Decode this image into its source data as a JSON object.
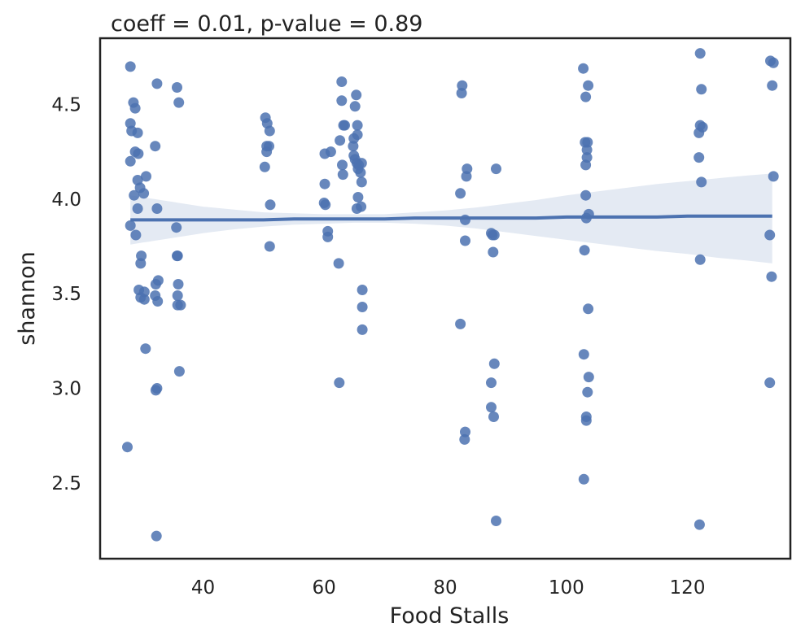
{
  "chart_data": {
    "type": "scatter",
    "title": "coeff = 0.01, p-value = 0.89",
    "xlabel": "Food Stalls",
    "ylabel": "shannon",
    "xlim": [
      23,
      137
    ],
    "ylim": [
      2.1,
      4.85
    ],
    "xticks": [
      40,
      60,
      80,
      100,
      120
    ],
    "yticks": [
      2.5,
      3.0,
      3.5,
      4.0,
      4.5
    ],
    "xtick_labels": [
      "40",
      "60",
      "80",
      "100",
      "120"
    ],
    "ytick_labels": [
      "2.5",
      "3.0",
      "3.5",
      "4.0",
      "4.5"
    ],
    "grid": false,
    "colors": {
      "points": "#4c72b0",
      "line": "#4c72b0",
      "band": "#4c72b0"
    },
    "regression": {
      "x": [
        28,
        29,
        30,
        31,
        32,
        33,
        34,
        35,
        36,
        37,
        40,
        45,
        50,
        55,
        60,
        65,
        70,
        75,
        80,
        85,
        90,
        95,
        100,
        105,
        110,
        115,
        120,
        125,
        130,
        134
      ],
      "y": [
        3.89,
        3.89,
        3.89,
        3.89,
        3.89,
        3.89,
        3.89,
        3.89,
        3.89,
        3.89,
        3.89,
        3.89,
        3.89,
        3.895,
        3.895,
        3.895,
        3.895,
        3.9,
        3.9,
        3.9,
        3.9,
        3.9,
        3.905,
        3.905,
        3.905,
        3.905,
        3.91,
        3.91,
        3.91,
        3.91
      ],
      "ci_low": [
        3.76,
        3.765,
        3.77,
        3.775,
        3.78,
        3.785,
        3.79,
        3.795,
        3.8,
        3.805,
        3.82,
        3.84,
        3.855,
        3.865,
        3.87,
        3.875,
        3.875,
        3.87,
        3.86,
        3.845,
        3.825,
        3.805,
        3.785,
        3.765,
        3.745,
        3.725,
        3.71,
        3.69,
        3.675,
        3.66
      ],
      "ci_high": [
        4.02,
        4.015,
        4.01,
        4.005,
        4.0,
        3.995,
        3.99,
        3.985,
        3.98,
        3.975,
        3.96,
        3.945,
        3.93,
        3.925,
        3.92,
        3.92,
        3.92,
        3.93,
        3.94,
        3.955,
        3.975,
        3.995,
        4.02,
        4.04,
        4.06,
        4.08,
        4.095,
        4.11,
        4.125,
        4.135
      ]
    },
    "points": [
      [
        28.0,
        4.7
      ],
      [
        28.5,
        4.51
      ],
      [
        28.8,
        4.48
      ],
      [
        28.0,
        4.4
      ],
      [
        28.2,
        4.36
      ],
      [
        29.2,
        4.35
      ],
      [
        28.8,
        4.25
      ],
      [
        29.3,
        4.24
      ],
      [
        28.0,
        4.2
      ],
      [
        30.6,
        4.12
      ],
      [
        29.2,
        4.1
      ],
      [
        29.6,
        4.06
      ],
      [
        30.2,
        4.03
      ],
      [
        28.6,
        4.02
      ],
      [
        29.2,
        3.95
      ],
      [
        28.0,
        3.86
      ],
      [
        28.9,
        3.81
      ],
      [
        29.8,
        3.7
      ],
      [
        29.7,
        3.66
      ],
      [
        29.4,
        3.52
      ],
      [
        30.3,
        3.51
      ],
      [
        29.7,
        3.48
      ],
      [
        30.3,
        3.47
      ],
      [
        30.5,
        3.21
      ],
      [
        27.5,
        2.69
      ],
      [
        32.4,
        4.61
      ],
      [
        32.1,
        4.28
      ],
      [
        32.4,
        3.95
      ],
      [
        32.6,
        3.57
      ],
      [
        32.2,
        3.55
      ],
      [
        32.1,
        3.49
      ],
      [
        32.5,
        3.46
      ],
      [
        32.4,
        3.0
      ],
      [
        32.2,
        2.99
      ],
      [
        32.3,
        2.22
      ],
      [
        35.7,
        4.59
      ],
      [
        36.0,
        4.51
      ],
      [
        35.6,
        3.85
      ],
      [
        35.7,
        3.7
      ],
      [
        35.8,
        3.7
      ],
      [
        35.9,
        3.55
      ],
      [
        35.8,
        3.49
      ],
      [
        35.8,
        3.44
      ],
      [
        36.3,
        3.44
      ],
      [
        36.1,
        3.09
      ],
      [
        50.3,
        4.43
      ],
      [
        50.6,
        4.4
      ],
      [
        51.0,
        4.36
      ],
      [
        50.5,
        4.28
      ],
      [
        50.9,
        4.28
      ],
      [
        50.5,
        4.25
      ],
      [
        50.2,
        4.17
      ],
      [
        51.1,
        3.97
      ],
      [
        51.0,
        3.75
      ],
      [
        62.9,
        4.62
      ],
      [
        62.9,
        4.52
      ],
      [
        63.4,
        4.39
      ],
      [
        63.2,
        4.39
      ],
      [
        62.6,
        4.31
      ],
      [
        61.1,
        4.25
      ],
      [
        60.1,
        4.24
      ],
      [
        63.0,
        4.18
      ],
      [
        63.1,
        4.13
      ],
      [
        60.1,
        4.08
      ],
      [
        60.0,
        3.98
      ],
      [
        60.2,
        3.97
      ],
      [
        60.6,
        3.83
      ],
      [
        60.6,
        3.8
      ],
      [
        62.4,
        3.66
      ],
      [
        62.5,
        3.03
      ],
      [
        65.3,
        4.55
      ],
      [
        65.1,
        4.49
      ],
      [
        65.5,
        4.39
      ],
      [
        65.5,
        4.34
      ],
      [
        64.9,
        4.32
      ],
      [
        64.8,
        4.28
      ],
      [
        64.9,
        4.23
      ],
      [
        65.1,
        4.21
      ],
      [
        65.4,
        4.19
      ],
      [
        65.7,
        4.18
      ],
      [
        66.2,
        4.19
      ],
      [
        65.6,
        4.16
      ],
      [
        66.0,
        4.14
      ],
      [
        66.2,
        4.09
      ],
      [
        65.6,
        4.01
      ],
      [
        66.1,
        3.96
      ],
      [
        65.4,
        3.95
      ],
      [
        66.3,
        3.52
      ],
      [
        66.3,
        3.43
      ],
      [
        66.3,
        3.31
      ],
      [
        82.8,
        4.6
      ],
      [
        82.7,
        4.56
      ],
      [
        83.6,
        4.16
      ],
      [
        83.5,
        4.12
      ],
      [
        82.5,
        4.03
      ],
      [
        83.3,
        3.89
      ],
      [
        83.3,
        3.78
      ],
      [
        82.5,
        3.34
      ],
      [
        83.3,
        2.77
      ],
      [
        83.2,
        2.73
      ],
      [
        88.4,
        4.16
      ],
      [
        87.6,
        3.82
      ],
      [
        88.1,
        3.81
      ],
      [
        87.8,
        3.81
      ],
      [
        87.9,
        3.72
      ],
      [
        88.1,
        3.13
      ],
      [
        87.6,
        3.03
      ],
      [
        87.6,
        2.9
      ],
      [
        88.0,
        2.85
      ],
      [
        88.4,
        2.3
      ],
      [
        102.8,
        4.69
      ],
      [
        103.6,
        4.6
      ],
      [
        103.2,
        4.54
      ],
      [
        103.1,
        4.3
      ],
      [
        103.5,
        4.3
      ],
      [
        103.4,
        4.26
      ],
      [
        103.4,
        4.22
      ],
      [
        103.2,
        4.18
      ],
      [
        103.2,
        4.02
      ],
      [
        103.7,
        3.92
      ],
      [
        103.3,
        3.9
      ],
      [
        103.0,
        3.73
      ],
      [
        103.6,
        3.42
      ],
      [
        102.9,
        3.18
      ],
      [
        103.7,
        3.06
      ],
      [
        103.5,
        2.98
      ],
      [
        103.3,
        2.85
      ],
      [
        103.3,
        2.83
      ],
      [
        102.9,
        2.52
      ],
      [
        122.1,
        4.77
      ],
      [
        122.3,
        4.58
      ],
      [
        122.1,
        4.39
      ],
      [
        122.5,
        4.38
      ],
      [
        121.9,
        4.35
      ],
      [
        121.9,
        4.22
      ],
      [
        122.3,
        4.09
      ],
      [
        122.1,
        3.68
      ],
      [
        122.0,
        2.28
      ],
      [
        133.7,
        4.73
      ],
      [
        134.2,
        4.72
      ],
      [
        134.0,
        4.6
      ],
      [
        134.2,
        4.12
      ],
      [
        133.6,
        3.81
      ],
      [
        133.9,
        3.59
      ],
      [
        133.6,
        3.03
      ]
    ]
  }
}
